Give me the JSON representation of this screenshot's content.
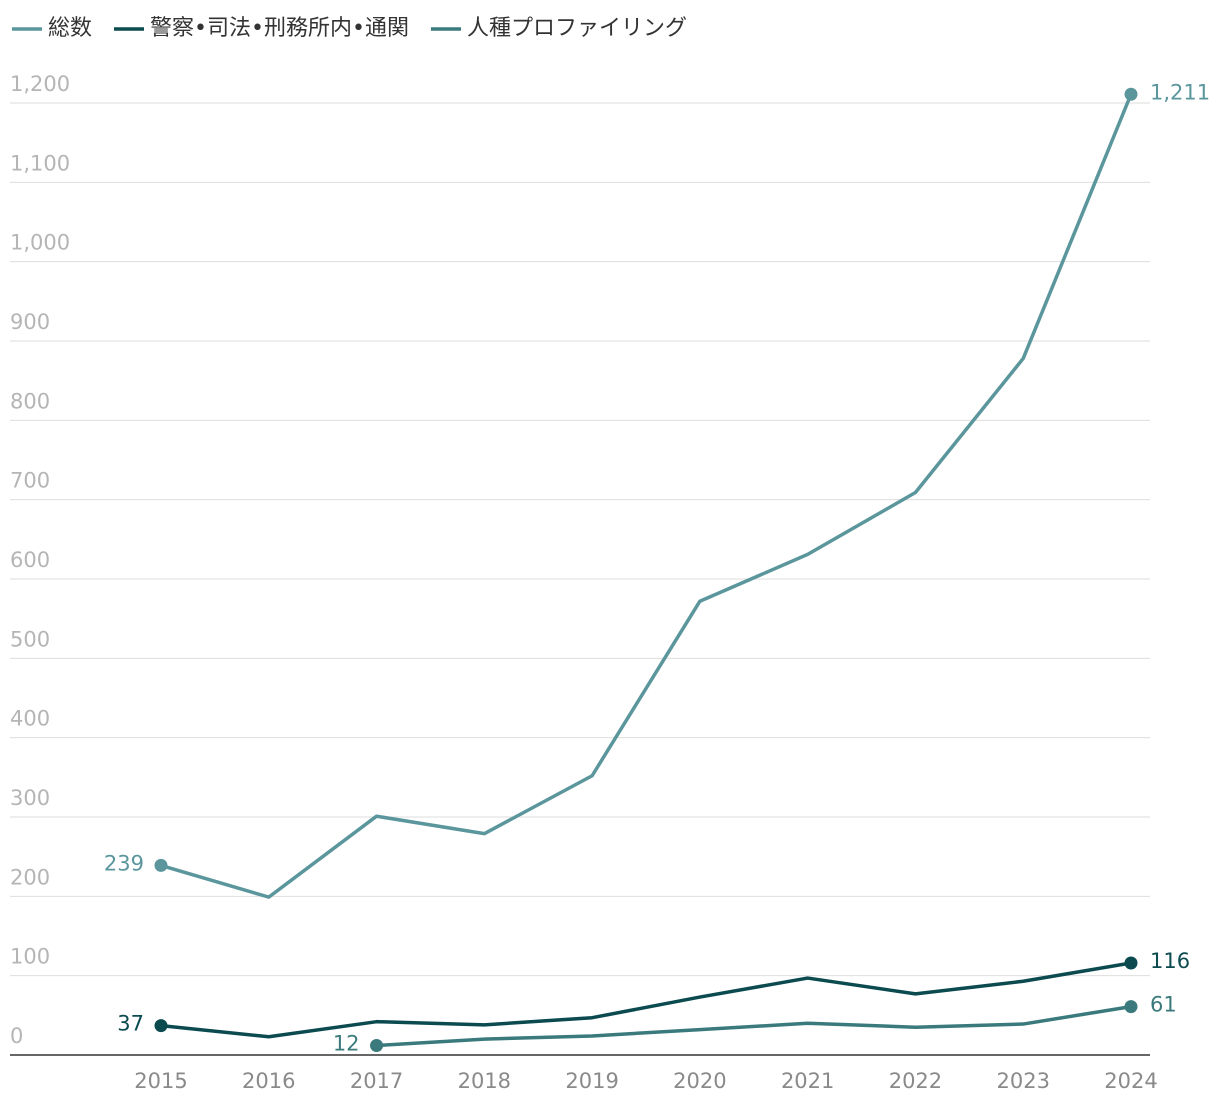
{
  "chart_data": {
    "type": "line",
    "categories": [
      "2015",
      "2016",
      "2017",
      "2018",
      "2019",
      "2020",
      "2021",
      "2022",
      "2023",
      "2024"
    ],
    "series": [
      {
        "name": "総数",
        "color": "#5a969c",
        "values": [
          239,
          199,
          301,
          279,
          352,
          572,
          631,
          709,
          878,
          1211
        ],
        "value_labels": [
          "239",
          null,
          null,
          null,
          null,
          null,
          null,
          null,
          null,
          "1,211"
        ]
      },
      {
        "name": "警察•司法•刑務所内•通関",
        "color": "#0b4a4f",
        "values": [
          37,
          23,
          42,
          38,
          47,
          73,
          97,
          77,
          93,
          116
        ],
        "value_labels": [
          "37",
          null,
          null,
          null,
          null,
          null,
          null,
          null,
          null,
          "116"
        ]
      },
      {
        "name": "人種プロファイリング",
        "color": "#3a7a7c",
        "values": [
          null,
          null,
          12,
          20,
          24,
          32,
          40,
          35,
          39,
          61
        ],
        "value_labels": [
          null,
          null,
          "12",
          null,
          null,
          null,
          null,
          null,
          null,
          "61"
        ]
      }
    ],
    "ylim": [
      0,
      1200
    ],
    "yticks": [
      0,
      100,
      200,
      300,
      400,
      500,
      600,
      700,
      800,
      900,
      {
        "value": 1000,
        "label": "1,000"
      },
      {
        "value": 1100,
        "label": "1,100"
      },
      {
        "value": 1200,
        "label": "1,200"
      }
    ],
    "grid": true,
    "legend": "top-left"
  }
}
